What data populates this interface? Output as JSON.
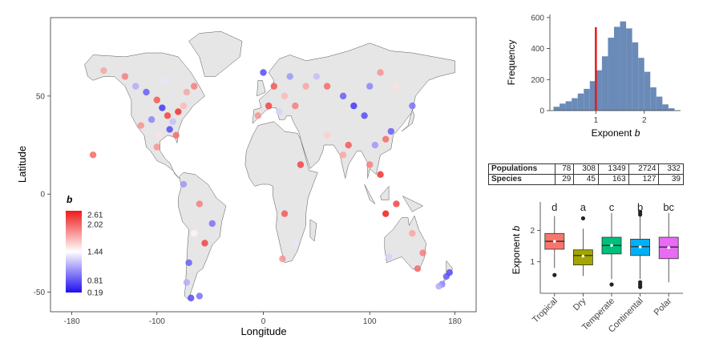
{
  "chart_data": [
    {
      "type": "scatter",
      "xlabel": "Longitude",
      "ylabel": "Latitude",
      "xlim": [
        -200,
        200
      ],
      "ylim": [
        -60,
        90
      ],
      "x_ticks": [
        -180,
        -100,
        0,
        100,
        180
      ],
      "y_ticks": [
        -50,
        0,
        50
      ],
      "legend": {
        "title": "b",
        "ticks": [
          "2.61",
          "2.02",
          "1.44",
          "0.81",
          "0.19"
        ],
        "placement": "bottom-left"
      },
      "color_scale": {
        "low": "#1f0ff0",
        "mid": "#ffffff",
        "high": "#ee1a1a"
      },
      "points": [
        {
          "x": -150,
          "y": 63,
          "b": 1.9
        },
        {
          "x": -130,
          "y": 60,
          "b": 2.1
        },
        {
          "x": -120,
          "y": 55,
          "b": 1.0
        },
        {
          "x": -110,
          "y": 52,
          "b": 0.6
        },
        {
          "x": -100,
          "y": 48,
          "b": 2.3
        },
        {
          "x": -95,
          "y": 44,
          "b": 0.4
        },
        {
          "x": -90,
          "y": 40,
          "b": 2.4
        },
        {
          "x": -85,
          "y": 37,
          "b": 1.1
        },
        {
          "x": -80,
          "y": 42,
          "b": 2.5
        },
        {
          "x": -75,
          "y": 45,
          "b": 1.8
        },
        {
          "x": -105,
          "y": 38,
          "b": 0.8
        },
        {
          "x": -115,
          "y": 35,
          "b": 2.0
        },
        {
          "x": -98,
          "y": 30,
          "b": 1.6
        },
        {
          "x": -88,
          "y": 33,
          "b": 0.5
        },
        {
          "x": -82,
          "y": 30,
          "b": 2.2
        },
        {
          "x": -100,
          "y": 24,
          "b": 2.0
        },
        {
          "x": -72,
          "y": 52,
          "b": 1.9
        },
        {
          "x": -65,
          "y": 55,
          "b": 2.1
        },
        {
          "x": -92,
          "y": 58,
          "b": 1.3
        },
        {
          "x": -160,
          "y": 20,
          "b": 2.2
        },
        {
          "x": -75,
          "y": 5,
          "b": 0.9
        },
        {
          "x": -60,
          "y": -5,
          "b": 2.1
        },
        {
          "x": -48,
          "y": -15,
          "b": 0.7
        },
        {
          "x": -55,
          "y": -25,
          "b": 2.4
        },
        {
          "x": -65,
          "y": -20,
          "b": 1.5
        },
        {
          "x": -70,
          "y": -35,
          "b": 0.6
        },
        {
          "x": -72,
          "y": -45,
          "b": 1.0
        },
        {
          "x": -68,
          "y": -53,
          "b": 0.5
        },
        {
          "x": -60,
          "y": -52,
          "b": 0.7
        },
        {
          "x": 10,
          "y": 55,
          "b": 2.3
        },
        {
          "x": 20,
          "y": 50,
          "b": 1.8
        },
        {
          "x": 25,
          "y": 60,
          "b": 0.9
        },
        {
          "x": 5,
          "y": 45,
          "b": 2.4
        },
        {
          "x": -5,
          "y": 40,
          "b": 2.0
        },
        {
          "x": 15,
          "y": 42,
          "b": 1.2
        },
        {
          "x": 30,
          "y": 45,
          "b": 2.1
        },
        {
          "x": 0,
          "y": 62,
          "b": 0.5
        },
        {
          "x": 40,
          "y": 55,
          "b": 1.9
        },
        {
          "x": 50,
          "y": 60,
          "b": 1.1
        },
        {
          "x": 60,
          "y": 55,
          "b": 2.2
        },
        {
          "x": 75,
          "y": 50,
          "b": 0.6
        },
        {
          "x": 85,
          "y": 45,
          "b": 0.4
        },
        {
          "x": 100,
          "y": 55,
          "b": 0.8
        },
        {
          "x": 110,
          "y": 62,
          "b": 2.0
        },
        {
          "x": 125,
          "y": 55,
          "b": 1.6
        },
        {
          "x": 140,
          "y": 45,
          "b": 0.7
        },
        {
          "x": 95,
          "y": 40,
          "b": 0.5
        },
        {
          "x": 80,
          "y": 25,
          "b": 2.3
        },
        {
          "x": 75,
          "y": 20,
          "b": 1.9
        },
        {
          "x": 100,
          "y": 15,
          "b": 2.1
        },
        {
          "x": 105,
          "y": 25,
          "b": 0.9
        },
        {
          "x": 115,
          "y": 28,
          "b": 2.2
        },
        {
          "x": 120,
          "y": 32,
          "b": 0.6
        },
        {
          "x": 110,
          "y": 10,
          "b": 2.5
        },
        {
          "x": 60,
          "y": 30,
          "b": 1.7
        },
        {
          "x": 35,
          "y": 15,
          "b": 2.4
        },
        {
          "x": 20,
          "y": -10,
          "b": 2.3
        },
        {
          "x": 30,
          "y": -25,
          "b": 1.3
        },
        {
          "x": 18,
          "y": -33,
          "b": 2.0
        },
        {
          "x": 115,
          "y": -10,
          "b": 2.6
        },
        {
          "x": 125,
          "y": -5,
          "b": 2.4
        },
        {
          "x": 140,
          "y": -20,
          "b": 1.9
        },
        {
          "x": 150,
          "y": -30,
          "b": 2.1
        },
        {
          "x": 145,
          "y": -38,
          "b": 2.2
        },
        {
          "x": 118,
          "y": -32,
          "b": 1.2
        },
        {
          "x": 172,
          "y": -42,
          "b": 0.6
        },
        {
          "x": 168,
          "y": -46,
          "b": 0.8
        },
        {
          "x": 175,
          "y": -40,
          "b": 0.5
        },
        {
          "x": 165,
          "y": -47,
          "b": 1.0
        }
      ]
    },
    {
      "type": "bar",
      "xlabel": "Exponent  b",
      "ylabel": "Frequency",
      "xlim": [
        0.05,
        2.75
      ],
      "ylim": [
        0,
        620
      ],
      "x_ticks": [
        1,
        2
      ],
      "y_ticks": [
        0,
        200,
        400,
        600
      ],
      "bin_width": 0.125,
      "bin_starts": [
        0.125,
        0.25,
        0.375,
        0.5,
        0.625,
        0.75,
        0.875,
        1.0,
        1.125,
        1.25,
        1.375,
        1.5,
        1.625,
        1.75,
        1.875,
        2.0,
        2.125,
        2.25,
        2.375,
        2.5
      ],
      "values": [
        25,
        45,
        60,
        80,
        110,
        140,
        190,
        260,
        350,
        470,
        540,
        575,
        530,
        440,
        340,
        250,
        150,
        90,
        40,
        15
      ],
      "reference_line": {
        "x": 1,
        "color": "#e41a1c"
      },
      "bar_color": "#6a8ab8"
    },
    {
      "type": "table",
      "rows": [
        {
          "label": "Populations",
          "values": [
            "78",
            "308",
            "1349",
            "2724",
            "332"
          ]
        },
        {
          "label": "Species",
          "values": [
            "29",
            "45",
            "163",
            "127",
            "39"
          ]
        }
      ]
    },
    {
      "type": "box",
      "ylabel": "Exponent  b",
      "ylim": [
        0.0,
        2.9
      ],
      "y_ticks": [
        1,
        2
      ],
      "categories": [
        "Tropical",
        "Dry",
        "Temperate",
        "Continental",
        "Polar"
      ],
      "letters": [
        "d",
        "a",
        "c",
        "b",
        "bc"
      ],
      "colors": [
        "#f8766d",
        "#a3a500",
        "#00bf7d",
        "#00b0f6",
        "#e76bf3"
      ],
      "boxes": [
        {
          "whisker_low": 0.8,
          "q1": 1.4,
          "median": 1.65,
          "q3": 1.9,
          "whisker_high": 2.45,
          "mean": 1.65,
          "outliers": [
            0.58
          ]
        },
        {
          "whisker_low": 0.55,
          "q1": 0.9,
          "median": 1.2,
          "q3": 1.38,
          "whisker_high": 2.05,
          "mean": 1.18,
          "outliers": [
            2.38
          ]
        },
        {
          "whisker_low": 0.45,
          "q1": 1.25,
          "median": 1.52,
          "q3": 1.78,
          "whisker_high": 2.55,
          "mean": 1.52,
          "outliers": [
            0.28
          ]
        },
        {
          "whisker_low": 0.45,
          "q1": 1.2,
          "median": 1.48,
          "q3": 1.72,
          "whisker_high": 2.5,
          "mean": 1.47,
          "outliers": [
            0.2,
            0.27,
            0.35,
            2.5,
            2.58
          ]
        },
        {
          "whisker_low": 0.35,
          "q1": 1.1,
          "median": 1.47,
          "q3": 1.78,
          "whisker_high": 2.55,
          "mean": 1.45,
          "outliers": []
        }
      ]
    }
  ]
}
